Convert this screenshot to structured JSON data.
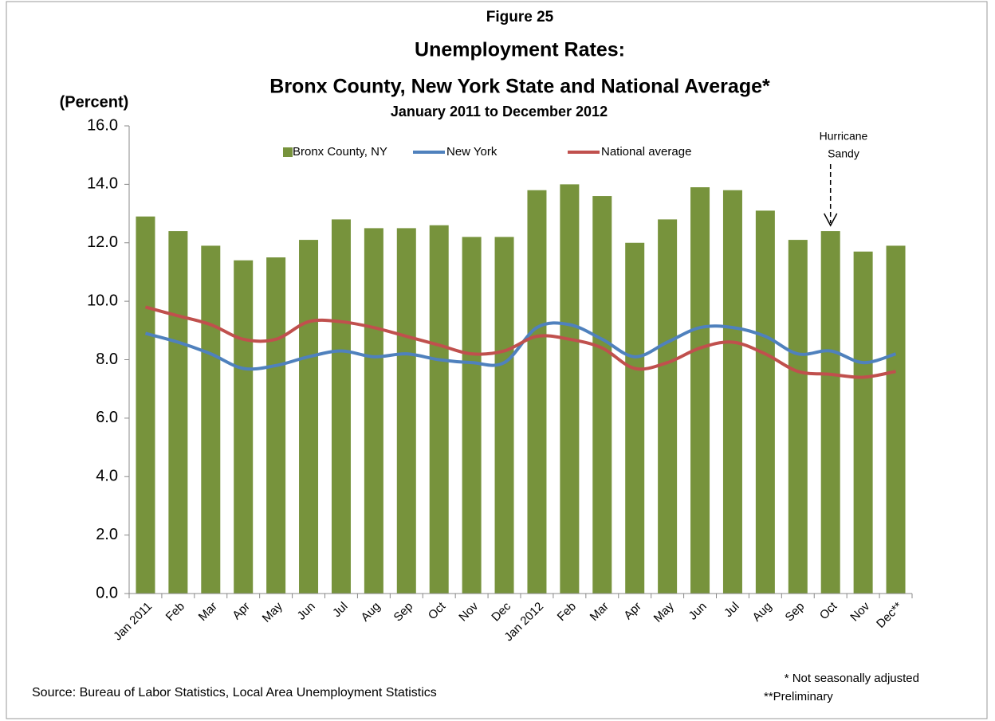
{
  "chart_data": {
    "type": "bar_line",
    "figure_label": "Figure 25",
    "title": "Unemployment Rates:",
    "subtitle": "Bronx County, New York State and National Average*",
    "period": "January 2011 to December 2012",
    "y_axis_label": "(Percent)",
    "annotation": [
      "Hurricane",
      "Sandy"
    ],
    "source": "Source: Bureau of Labor Statistics, Local Area Unemployment Statistics",
    "footnotes": [
      "* Not seasonally adjusted",
      "**Preliminary"
    ],
    "categories": [
      "Jan 2011",
      "Feb",
      "Mar",
      "Apr",
      "May",
      "Jun",
      "Jul",
      "Aug",
      "Sep",
      "Oct",
      "Nov",
      "Dec",
      "Jan 2012",
      "Feb",
      "Mar",
      "Apr",
      "May",
      "Jun",
      "Jul",
      "Aug",
      "Sep",
      "Oct",
      "Nov",
      "Dec**"
    ],
    "series": [
      {
        "name": "Bronx County, NY",
        "kind": "bar",
        "color": "#77933c",
        "values": [
          12.9,
          12.4,
          11.9,
          11.4,
          11.5,
          12.1,
          12.8,
          12.5,
          12.5,
          12.6,
          12.2,
          12.2,
          13.8,
          14.0,
          13.6,
          12.0,
          12.8,
          13.9,
          13.8,
          13.1,
          12.1,
          12.4,
          11.7,
          11.9
        ]
      },
      {
        "name": "New York",
        "kind": "line",
        "color": "#4f81bd",
        "values": [
          8.9,
          8.6,
          8.2,
          7.7,
          7.8,
          8.1,
          8.3,
          8.1,
          8.2,
          8.0,
          7.9,
          7.9,
          9.1,
          9.2,
          8.7,
          8.1,
          8.6,
          9.1,
          9.1,
          8.8,
          8.2,
          8.3,
          7.9,
          8.2
        ]
      },
      {
        "name": "National average",
        "kind": "line",
        "color": "#c0504d",
        "values": [
          9.8,
          9.5,
          9.2,
          8.7,
          8.7,
          9.3,
          9.3,
          9.1,
          8.8,
          8.5,
          8.2,
          8.3,
          8.8,
          8.7,
          8.4,
          7.7,
          7.9,
          8.4,
          8.6,
          8.2,
          7.6,
          7.5,
          7.4,
          7.6
        ]
      }
    ],
    "ylim": [
      0,
      16
    ],
    "yticks": [
      {
        "value": 0,
        "label": "0.0"
      },
      {
        "value": 2,
        "label": "2.0"
      },
      {
        "value": 4,
        "label": "4.0"
      },
      {
        "value": 6,
        "label": "6.0"
      },
      {
        "value": 8,
        "label": "8.0"
      },
      {
        "value": 10,
        "label": "10.0"
      },
      {
        "value": 12,
        "label": "12.0"
      },
      {
        "value": 14,
        "label": "14.0"
      },
      {
        "value": 16,
        "label": "16.0"
      }
    ],
    "grid": false,
    "legend": "top"
  }
}
